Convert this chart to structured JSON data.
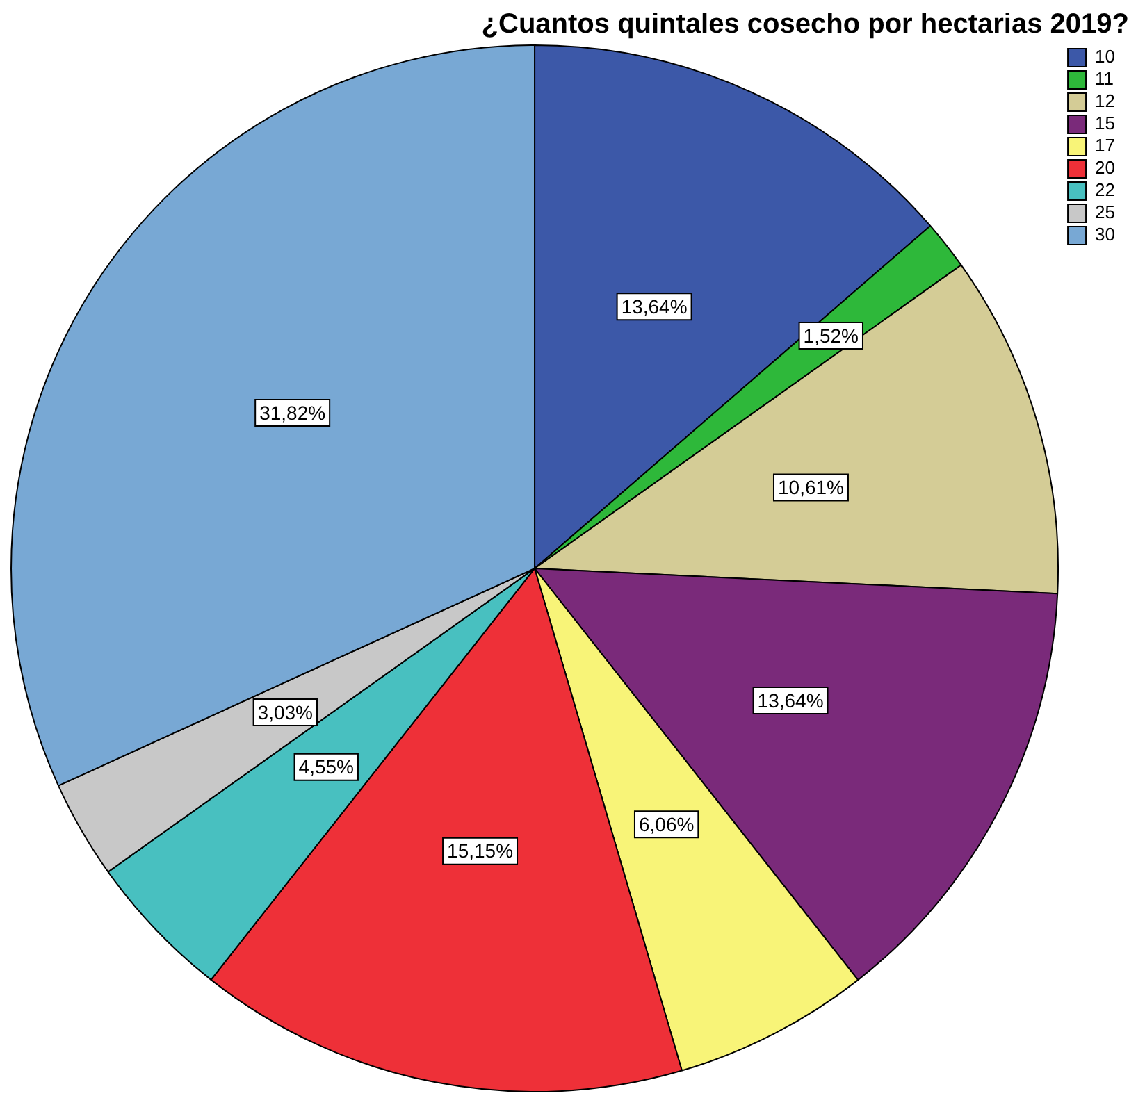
{
  "chart_data": {
    "type": "pie",
    "title": "¿Cuantos quintales cosecho por hectarias 2019?",
    "categories": [
      "10",
      "11",
      "12",
      "15",
      "17",
      "20",
      "22",
      "25",
      "30"
    ],
    "values": [
      13.64,
      1.52,
      10.61,
      13.64,
      6.06,
      15.15,
      4.55,
      3.03,
      31.82
    ],
    "value_labels": [
      "13,64%",
      "1,52%",
      "10,61%",
      "13,64%",
      "6,06%",
      "15,15%",
      "4,55%",
      "3,03%",
      "31,82%"
    ],
    "colors": [
      "#3c58a8",
      "#2eb83a",
      "#d4cc96",
      "#7a2a7a",
      "#f8f478",
      "#ee3038",
      "#48c0c0",
      "#c8c8c8",
      "#78a8d4"
    ],
    "legend": "top right"
  }
}
